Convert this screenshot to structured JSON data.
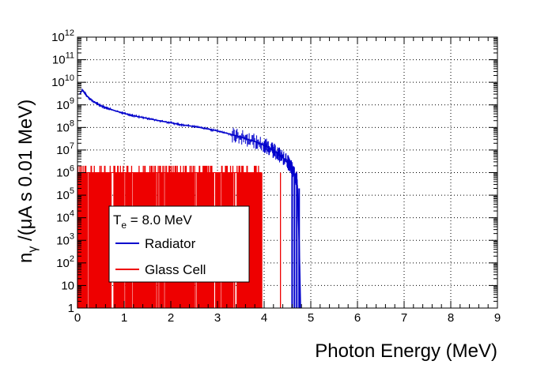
{
  "chart_data": {
    "type": "line",
    "xlabel": "Photon Energy (MeV)",
    "ylabel_main": "n",
    "ylabel_sub": "γ",
    "ylabel_rest": " /(μA s 0.01 MeV)",
    "xlim": [
      0,
      9
    ],
    "ylim": [
      1,
      1000000000000.0
    ],
    "yscale": "log",
    "grid": true,
    "x_ticks": [
      "0",
      "1",
      "2",
      "3",
      "4",
      "5",
      "6",
      "7",
      "8",
      "9"
    ],
    "y_ticks": [
      {
        "value": 1,
        "base": "1",
        "exp": ""
      },
      {
        "value": 10,
        "base": "10",
        "exp": ""
      },
      {
        "value": 100,
        "base": "10",
        "exp": "2"
      },
      {
        "value": 1000,
        "base": "10",
        "exp": "3"
      },
      {
        "value": 10000,
        "base": "10",
        "exp": "4"
      },
      {
        "value": 100000,
        "base": "10",
        "exp": "5"
      },
      {
        "value": 1000000,
        "base": "10",
        "exp": "6"
      },
      {
        "value": 10000000,
        "base": "10",
        "exp": "7"
      },
      {
        "value": 100000000,
        "base": "10",
        "exp": "8"
      },
      {
        "value": 1000000000,
        "base": "10",
        "exp": "9"
      },
      {
        "value": 10000000000,
        "base": "10",
        "exp": "10"
      },
      {
        "value": 100000000000,
        "base": "10",
        "exp": "11"
      },
      {
        "value": 1000000000000,
        "base": "10",
        "exp": "12"
      }
    ],
    "legend": {
      "placement": "lower-left",
      "header_main": "T",
      "header_sub": "e",
      "header_rest": " = 8.0 MeV",
      "entries": [
        "Radiator",
        "Glass Cell"
      ]
    },
    "series": [
      {
        "name": "Radiator",
        "color": "#0000cc",
        "x": [
          0.05,
          0.1,
          0.15,
          0.2,
          0.3,
          0.4,
          0.5,
          0.6,
          0.8,
          1.0,
          1.2,
          1.5,
          1.8,
          2.0,
          2.2,
          2.5,
          2.8,
          3.0,
          3.2,
          3.4,
          3.6,
          3.8,
          4.0,
          4.1,
          4.2,
          4.3,
          4.4,
          4.5,
          4.55,
          4.6,
          4.65,
          4.7,
          4.72,
          4.75,
          4.78
        ],
        "y": [
          3000000000.0,
          4500000000.0,
          3500000000.0,
          2500000000.0,
          1600000000.0,
          1200000000.0,
          900000000.0,
          750000000.0,
          550000000.0,
          420000000.0,
          330000000.0,
          250000000.0,
          190000000.0,
          160000000.0,
          135000000.0,
          110000000.0,
          85000000.0,
          70000000.0,
          55000000.0,
          43000000.0,
          32000000.0,
          24000000.0,
          16000000.0,
          13000000.0,
          9000000.0,
          7000000.0,
          4500000.0,
          3000000.0,
          2000000.0,
          1500000.0,
          800000.0,
          500000.0,
          100000.0,
          1000.0,
          1
        ]
      },
      {
        "name": "Glass Cell",
        "color": "#ee0000",
        "x": [
          0.0,
          4.7
        ],
        "levels": [
          1000000.0,
          2000000.0
        ],
        "x_end_dense": 3.95,
        "x_sparse": [
          4.35,
          4.7
        ]
      }
    ]
  }
}
